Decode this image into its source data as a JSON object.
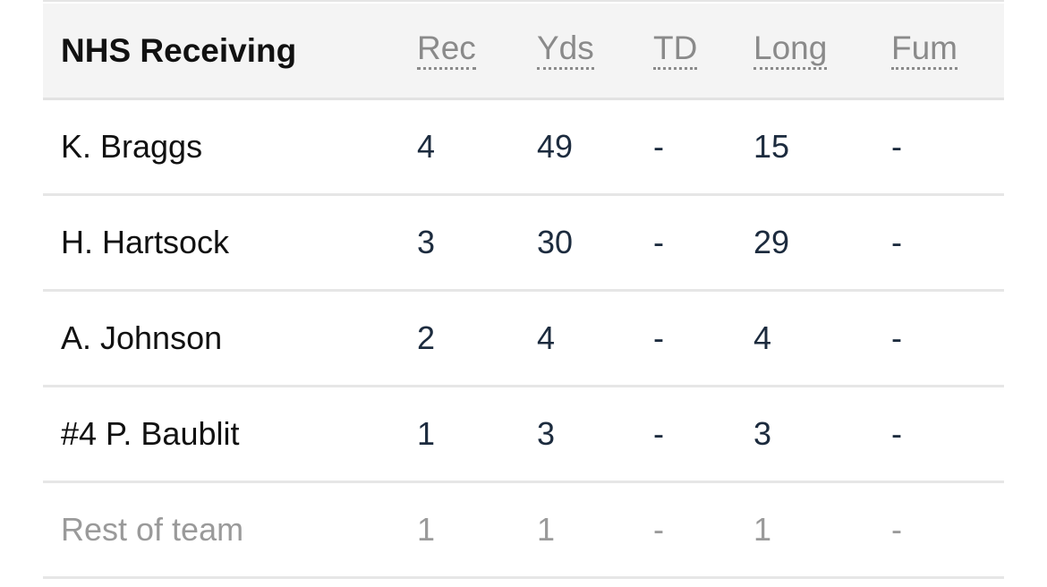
{
  "table": {
    "title": "NHS Receiving",
    "columns": [
      "Rec",
      "Yds",
      "TD",
      "Long",
      "Fum"
    ],
    "rows": [
      {
        "name": "K. Braggs",
        "rec": "4",
        "yds": "49",
        "td": "-",
        "long": "15",
        "fum": "-"
      },
      {
        "name": "H. Hartsock",
        "rec": "3",
        "yds": "30",
        "td": "-",
        "long": "29",
        "fum": "-"
      },
      {
        "name": "A. Johnson",
        "rec": "2",
        "yds": "4",
        "td": "-",
        "long": "4",
        "fum": "-"
      },
      {
        "name": "#4 P. Baublit",
        "rec": "1",
        "yds": "3",
        "td": "-",
        "long": "3",
        "fum": "-"
      },
      {
        "name": "Rest of team",
        "rec": "1",
        "yds": "1",
        "td": "-",
        "long": "1",
        "fum": "-"
      }
    ]
  },
  "colors": {
    "header_bg": "#f4f4f4",
    "player_text": "#111111",
    "number_text": "#1c2b3e",
    "muted_text": "#9a9a9a",
    "column_header_text": "#8a8a8a"
  }
}
